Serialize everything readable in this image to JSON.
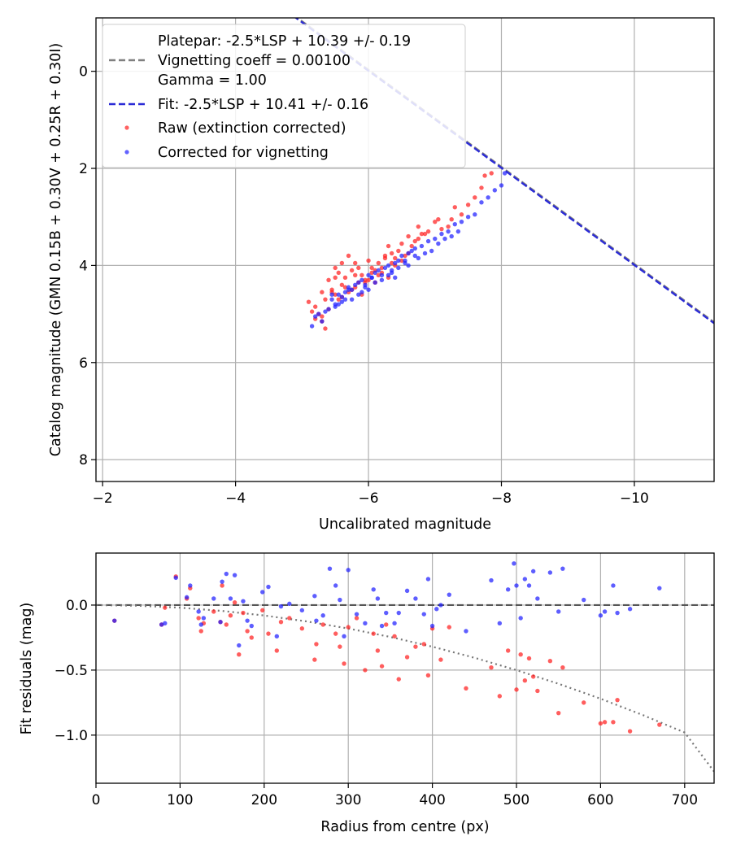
{
  "chart_data": [
    {
      "type": "scatter",
      "xlabel": "Uncalibrated magnitude",
      "ylabel": "Catalog magnitude (GMN 0.15B + 0.30V + 0.25R + 0.30I)",
      "xlim": [
        -1.9,
        -11.2
      ],
      "ylim": [
        8.45,
        -1.1
      ],
      "xticks": [
        -2,
        -4,
        -6,
        -8,
        -10
      ],
      "xtick_labels": [
        "−2",
        "−4",
        "−6",
        "−8",
        "−10"
      ],
      "yticks": [
        0,
        2,
        4,
        6,
        8
      ],
      "ytick_labels": [
        "0",
        "2",
        "4",
        "6",
        "8"
      ],
      "grid": true,
      "legend_position": "top-left",
      "legend": [
        {
          "label": "Platepar: -2.5*LSP + 10.39 +/- 0.19",
          "style": "none"
        },
        {
          "label": "Vignetting coeff = 0.00100",
          "style": "gray-dashed"
        },
        {
          "label": "Gamma = 1.00",
          "style": "none"
        },
        {
          "label": "Fit: -2.5*LSP + 10.41 +/- 0.16",
          "style": "blue-dashed"
        },
        {
          "label": "Raw (extinction corrected)",
          "style": "red-dot"
        },
        {
          "label": "Corrected for vignetting",
          "style": "blue-dot"
        }
      ],
      "series": [
        {
          "name": "Platepar: -2.5*LSP + 10.39 +/- 0.19",
          "kind": "line",
          "dash": "dashed",
          "color": "#808080",
          "intercept": 10.39
        },
        {
          "name": "Fit: -2.5*LSP + 10.41 +/- 0.16",
          "kind": "line",
          "dash": "dashed",
          "color": "#2b2bd6",
          "intercept": 10.41
        },
        {
          "name": "Raw (extinction corrected)",
          "kind": "scatter",
          "color": "#ff2020",
          "x": [
            -5.1,
            -5.2,
            -5.25,
            -5.3,
            -5.3,
            -5.35,
            -5.4,
            -5.45,
            -5.5,
            -5.5,
            -5.55,
            -5.6,
            -5.6,
            -5.65,
            -5.7,
            -5.75,
            -5.8,
            -5.8,
            -5.85,
            -5.9,
            -5.95,
            -6.0,
            -6.05,
            -6.1,
            -6.15,
            -6.2,
            -6.25,
            -6.3,
            -6.35,
            -6.4,
            -6.45,
            -6.5,
            -6.55,
            -6.6,
            -6.65,
            -6.7,
            -6.75,
            -6.8,
            -6.9,
            -7.0,
            -7.1,
            -7.2,
            -7.25,
            -7.3,
            -7.4,
            -7.5,
            -7.6,
            -7.7,
            -7.75,
            -7.85,
            -5.2,
            -5.4,
            -5.55,
            -5.7,
            -5.9,
            -6.1,
            -6.3,
            -6.5,
            -6.75,
            -7.05,
            -5.15,
            -5.35,
            -5.45,
            -5.65,
            -5.8,
            -6.0,
            -6.2,
            -6.4,
            -6.6,
            -6.85,
            -5.5,
            -5.6,
            -5.75,
            -5.95,
            -6.15,
            -6.35,
            -5.3,
            -5.85,
            -6.05,
            -6.25
          ],
          "y": [
            4.75,
            4.85,
            5.0,
            4.55,
            5.15,
            4.7,
            4.3,
            4.5,
            4.05,
            4.6,
            4.15,
            3.95,
            4.4,
            4.25,
            3.8,
            4.1,
            4.45,
            3.95,
            4.05,
            4.2,
            4.3,
            3.9,
            4.15,
            4.1,
            3.95,
            4.05,
            3.8,
            3.6,
            3.75,
            3.85,
            3.7,
            3.55,
            3.8,
            3.4,
            3.6,
            3.5,
            3.2,
            3.35,
            3.3,
            3.1,
            3.25,
            3.2,
            3.05,
            2.8,
            2.95,
            2.75,
            2.6,
            2.4,
            2.15,
            2.1,
            5.1,
            4.9,
            4.7,
            4.55,
            4.6,
            4.35,
            4.25,
            3.9,
            3.45,
            3.05,
            4.95,
            5.3,
            4.55,
            4.45,
            4.2,
            4.3,
            4.15,
            4.0,
            3.75,
            3.35,
            4.25,
            4.65,
            4.5,
            4.35,
            4.2,
            3.95,
            5.05,
            4.35,
            4.05,
            3.85
          ]
        },
        {
          "name": "Corrected for vignetting",
          "kind": "scatter",
          "color": "#2020ff",
          "x": [
            -5.15,
            -5.25,
            -5.3,
            -5.4,
            -5.45,
            -5.5,
            -5.55,
            -5.6,
            -5.65,
            -5.7,
            -5.75,
            -5.8,
            -5.85,
            -5.9,
            -5.95,
            -6.0,
            -6.05,
            -6.1,
            -6.15,
            -6.2,
            -6.25,
            -6.3,
            -6.35,
            -6.4,
            -6.45,
            -6.5,
            -6.55,
            -6.6,
            -6.65,
            -6.7,
            -6.75,
            -6.8,
            -6.9,
            -7.0,
            -7.1,
            -7.2,
            -7.3,
            -7.4,
            -7.5,
            -7.6,
            -7.7,
            -7.8,
            -7.9,
            -8.0,
            -8.05,
            -5.35,
            -5.6,
            -5.85,
            -6.1,
            -6.4,
            -6.7,
            -7.05,
            -7.35,
            -5.2,
            -5.5,
            -5.75,
            -6.0,
            -6.3,
            -6.6,
            -6.95,
            -7.25,
            -5.45,
            -5.7,
            -5.95,
            -6.2,
            -6.55,
            -6.85,
            -7.15,
            -5.65,
            -6.05,
            -6.45,
            -5.55,
            -5.9,
            -6.35
          ],
          "y": [
            5.25,
            5.0,
            5.15,
            4.9,
            4.7,
            4.8,
            4.6,
            4.65,
            4.55,
            4.45,
            4.5,
            4.4,
            4.35,
            4.3,
            4.45,
            4.2,
            4.25,
            4.15,
            4.1,
            4.3,
            4.05,
            4.0,
            4.1,
            3.95,
            3.9,
            3.8,
            3.95,
            3.75,
            3.7,
            3.65,
            3.85,
            3.6,
            3.5,
            3.45,
            3.35,
            3.3,
            3.15,
            3.1,
            3.0,
            2.95,
            2.7,
            2.6,
            2.45,
            2.35,
            2.1,
            4.95,
            4.75,
            4.6,
            4.35,
            4.25,
            3.8,
            3.55,
            3.3,
            5.05,
            4.85,
            4.7,
            4.5,
            4.2,
            4.0,
            3.7,
            3.4,
            4.6,
            4.5,
            4.4,
            4.2,
            3.9,
            3.75,
            3.45,
            4.7,
            4.25,
            4.05,
            4.8,
            4.55,
            4.15
          ]
        }
      ]
    },
    {
      "type": "scatter",
      "xlabel": "Radius from centre (px)",
      "ylabel": "Fit residuals (mag)",
      "xlim": [
        0,
        735
      ],
      "ylim": [
        -1.37,
        0.4
      ],
      "xticks": [
        0,
        100,
        200,
        300,
        400,
        500,
        600,
        700
      ],
      "xtick_labels": [
        "0",
        "100",
        "200",
        "300",
        "400",
        "500",
        "600",
        "700"
      ],
      "yticks": [
        0.0,
        -0.5,
        -1.0
      ],
      "ytick_labels": [
        "0.0",
        "−0.5",
        "−1.0"
      ],
      "grid": true,
      "series": [
        {
          "name": "Zero line",
          "kind": "line",
          "dash": "dashed",
          "color": "#555555",
          "value": 0.0
        },
        {
          "name": "Vignetting model",
          "kind": "curve",
          "dash": "dotted",
          "color": "#777777",
          "coeff": 0.001,
          "x": [
            0,
            50,
            100,
            150,
            200,
            250,
            300,
            350,
            400,
            450,
            500,
            550,
            600,
            650,
            700,
            735
          ],
          "y": [
            0.0,
            -0.005,
            -0.02,
            -0.045,
            -0.08,
            -0.125,
            -0.18,
            -0.245,
            -0.32,
            -0.405,
            -0.5,
            -0.605,
            -0.72,
            -0.845,
            -0.98,
            -1.28
          ]
        },
        {
          "name": "Raw",
          "kind": "scatter",
          "color": "#ff2020",
          "x": [
            22,
            78,
            82,
            95,
            108,
            112,
            122,
            125,
            128,
            140,
            148,
            150,
            155,
            160,
            165,
            170,
            175,
            180,
            185,
            198,
            205,
            215,
            220,
            230,
            245,
            260,
            262,
            270,
            285,
            290,
            295,
            300,
            310,
            320,
            330,
            335,
            340,
            345,
            355,
            360,
            370,
            380,
            390,
            395,
            400,
            410,
            420,
            440,
            470,
            480,
            490,
            500,
            505,
            510,
            515,
            520,
            525,
            540,
            550,
            555,
            580,
            600,
            605,
            615,
            620,
            635,
            670
          ],
          "x_unused": [],
          "y": [
            -0.12,
            -0.15,
            -0.02,
            0.22,
            0.05,
            0.13,
            -0.1,
            -0.2,
            -0.14,
            -0.05,
            -0.13,
            0.15,
            -0.15,
            -0.08,
            0.02,
            -0.38,
            -0.06,
            -0.2,
            -0.25,
            -0.04,
            -0.22,
            -0.35,
            -0.13,
            -0.1,
            -0.18,
            -0.42,
            -0.3,
            -0.15,
            -0.22,
            -0.32,
            -0.45,
            -0.17,
            -0.1,
            -0.5,
            -0.22,
            -0.35,
            -0.47,
            -0.15,
            -0.24,
            -0.57,
            -0.4,
            -0.32,
            -0.3,
            -0.54,
            -0.18,
            -0.42,
            -0.17,
            -0.64,
            -0.48,
            -0.7,
            -0.35,
            -0.65,
            -0.38,
            -0.58,
            -0.41,
            -0.55,
            -0.66,
            -0.43,
            -0.83,
            -0.48,
            -0.75,
            -0.91,
            -0.9,
            -0.9,
            -0.73,
            -0.97,
            -0.92
          ]
        },
        {
          "name": "Corrected",
          "kind": "scatter",
          "color": "#2020ff",
          "x": [
            22,
            78,
            82,
            95,
            108,
            112,
            122,
            125,
            128,
            140,
            148,
            150,
            155,
            160,
            165,
            170,
            175,
            180,
            185,
            198,
            205,
            215,
            220,
            230,
            245,
            260,
            262,
            270,
            278,
            285,
            290,
            295,
            300,
            310,
            320,
            330,
            335,
            340,
            345,
            355,
            360,
            370,
            380,
            390,
            395,
            400,
            405,
            410,
            420,
            440,
            470,
            480,
            490,
            497,
            500,
            505,
            510,
            515,
            520,
            525,
            540,
            550,
            555,
            580,
            600,
            605,
            615,
            620,
            635,
            670
          ],
          "y": [
            -0.12,
            -0.15,
            -0.14,
            0.21,
            0.06,
            0.15,
            -0.05,
            -0.15,
            -0.1,
            0.05,
            -0.13,
            0.18,
            0.24,
            0.05,
            0.23,
            -0.31,
            0.03,
            -0.12,
            -0.16,
            0.1,
            0.14,
            -0.24,
            -0.01,
            0.01,
            -0.04,
            0.07,
            -0.12,
            -0.08,
            0.28,
            0.15,
            0.04,
            -0.24,
            0.27,
            -0.07,
            -0.14,
            0.12,
            0.05,
            -0.16,
            -0.06,
            -0.14,
            -0.06,
            0.11,
            0.05,
            -0.07,
            0.2,
            -0.16,
            -0.03,
            0.0,
            0.08,
            -0.2,
            0.19,
            -0.14,
            0.12,
            0.32,
            0.15,
            -0.1,
            0.2,
            0.15,
            0.26,
            0.05,
            0.25,
            -0.05,
            0.28,
            0.04,
            -0.08,
            -0.05,
            0.15,
            -0.06,
            -0.03,
            0.13
          ]
        }
      ]
    }
  ]
}
